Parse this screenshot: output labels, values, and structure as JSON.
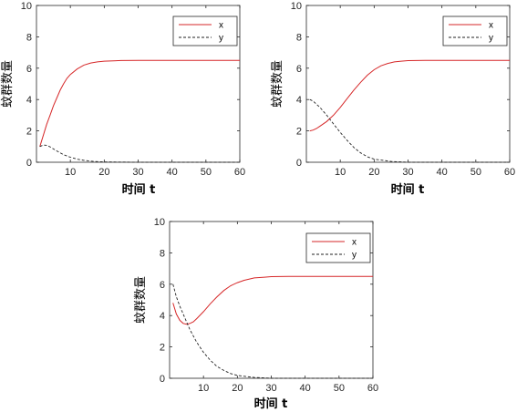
{
  "chart_data": [
    {
      "type": "line",
      "xlabel": "时间 t",
      "ylabel": "蚊群数量",
      "xlim": [
        0,
        60
      ],
      "ylim": [
        0,
        10
      ],
      "xticks": [
        10,
        20,
        30,
        40,
        50,
        60
      ],
      "yticks": [
        0,
        2,
        4,
        6,
        8,
        10
      ],
      "legend": "top-right",
      "grid": false,
      "series": [
        {
          "name": "x",
          "color": "#d62728",
          "style": "solid",
          "x": [
            1,
            2,
            3,
            4,
            5,
            6,
            7,
            8,
            9,
            10,
            12,
            14,
            16,
            18,
            20,
            25,
            30,
            40,
            50,
            60
          ],
          "y": [
            1.0,
            1.7,
            2.4,
            3.0,
            3.6,
            4.1,
            4.6,
            5.0,
            5.35,
            5.6,
            5.95,
            6.2,
            6.33,
            6.4,
            6.45,
            6.49,
            6.5,
            6.5,
            6.5,
            6.5
          ]
        },
        {
          "name": "y",
          "color": "#222222",
          "style": "dashed",
          "x": [
            1,
            2,
            3,
            4,
            5,
            6,
            7,
            8,
            10,
            12,
            14,
            16,
            18,
            20,
            25,
            30,
            40,
            50,
            60
          ],
          "y": [
            1.0,
            1.1,
            1.08,
            0.98,
            0.85,
            0.72,
            0.6,
            0.48,
            0.32,
            0.2,
            0.12,
            0.07,
            0.04,
            0.02,
            0.01,
            0.0,
            0.0,
            0.0,
            0.0
          ]
        }
      ]
    },
    {
      "type": "line",
      "xlabel": "时间 t",
      "ylabel": "蚊群数量",
      "xlim": [
        0,
        60
      ],
      "ylim": [
        0,
        10
      ],
      "xticks": [
        10,
        20,
        30,
        40,
        50,
        60
      ],
      "yticks": [
        0,
        2,
        4,
        6,
        8,
        10
      ],
      "legend": "top-right",
      "grid": false,
      "series": [
        {
          "name": "x",
          "color": "#d62728",
          "style": "solid",
          "x": [
            1,
            2,
            3,
            4,
            6,
            8,
            10,
            12,
            14,
            16,
            18,
            20,
            22,
            24,
            26,
            28,
            30,
            35,
            40,
            50,
            60
          ],
          "y": [
            2.0,
            2.05,
            2.15,
            2.3,
            2.6,
            3.0,
            3.5,
            4.05,
            4.6,
            5.1,
            5.55,
            5.9,
            6.15,
            6.3,
            6.4,
            6.45,
            6.48,
            6.5,
            6.5,
            6.5,
            6.5
          ]
        },
        {
          "name": "y",
          "color": "#222222",
          "style": "dashed",
          "x": [
            1,
            2,
            3,
            4,
            6,
            8,
            10,
            12,
            14,
            16,
            18,
            20,
            25,
            30,
            40,
            50,
            60
          ],
          "y": [
            4.0,
            3.9,
            3.7,
            3.5,
            3.0,
            2.45,
            1.9,
            1.4,
            0.95,
            0.6,
            0.35,
            0.2,
            0.05,
            0.0,
            0.0,
            0.0,
            0.0
          ]
        }
      ]
    },
    {
      "type": "line",
      "xlabel": "时间 t",
      "ylabel": "蚊群数量",
      "xlim": [
        0,
        60
      ],
      "ylim": [
        0,
        10
      ],
      "xticks": [
        10,
        20,
        30,
        40,
        50,
        60
      ],
      "yticks": [
        0,
        2,
        4,
        6,
        8,
        10
      ],
      "legend": "top-right",
      "grid": false,
      "series": [
        {
          "name": "x",
          "color": "#d62728",
          "style": "solid",
          "x": [
            1,
            2,
            3,
            4,
            5,
            6,
            7,
            8,
            10,
            12,
            14,
            16,
            18,
            20,
            22,
            25,
            28,
            30,
            35,
            40,
            50,
            60
          ],
          "y": [
            4.8,
            4.1,
            3.7,
            3.5,
            3.45,
            3.5,
            3.6,
            3.8,
            4.25,
            4.75,
            5.2,
            5.6,
            5.9,
            6.1,
            6.25,
            6.4,
            6.45,
            6.48,
            6.5,
            6.5,
            6.5,
            6.5
          ]
        },
        {
          "name": "y",
          "color": "#222222",
          "style": "dashed",
          "x": [
            1,
            2,
            3,
            4,
            5,
            6,
            8,
            10,
            12,
            14,
            16,
            18,
            20,
            25,
            30,
            40,
            50,
            60
          ],
          "y": [
            6.0,
            5.2,
            4.6,
            4.1,
            3.6,
            3.1,
            2.3,
            1.65,
            1.15,
            0.75,
            0.5,
            0.3,
            0.18,
            0.05,
            0.0,
            0.0,
            0.0,
            0.0
          ]
        }
      ]
    }
  ]
}
